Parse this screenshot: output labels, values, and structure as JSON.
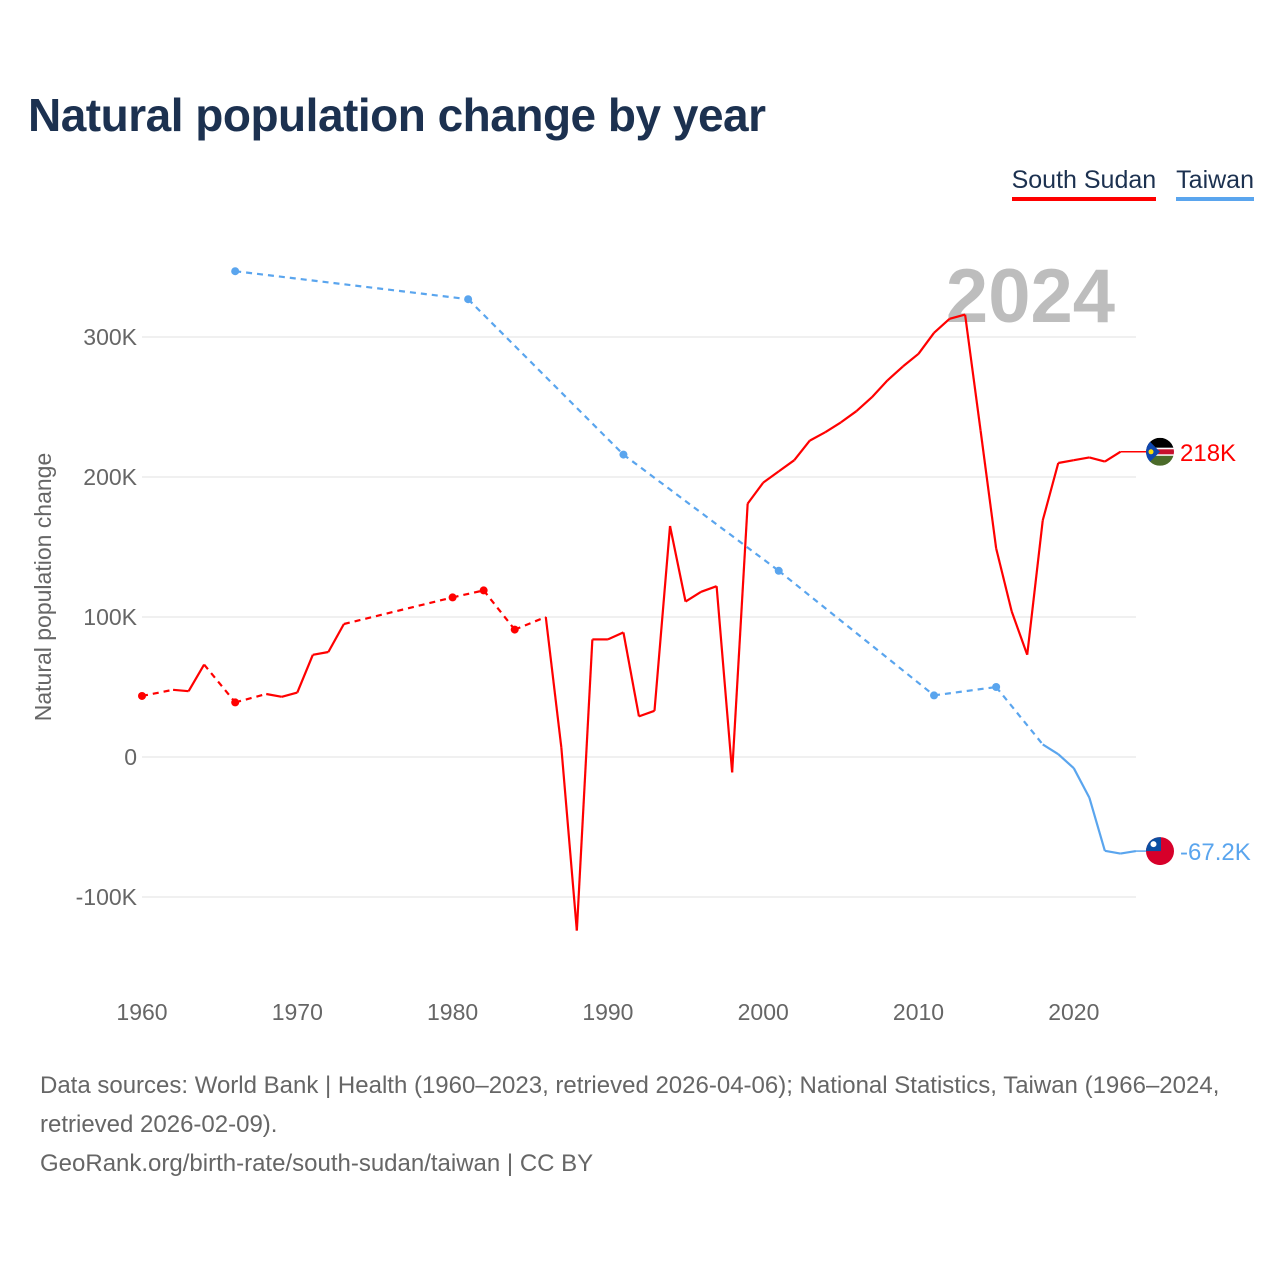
{
  "title": "Natural population change by year",
  "source_lines": [
    "Data sources: World Bank | Health (1960–2023, retrieved 2026-04-06); National Statistics, Taiwan (1966–2024, retrieved 2026-02-09).",
    "GeoRank.org/birth-rate/south-sudan/taiwan | CC BY"
  ],
  "chart_data": {
    "type": "line",
    "title": "Natural population change by year",
    "xlabel": "",
    "ylabel": "Natural population change",
    "watermark_year": "2024",
    "xlim": [
      1960,
      2024
    ],
    "ylim": [
      -150000,
      350000
    ],
    "xticks": [
      1960,
      1970,
      1980,
      1990,
      2000,
      2010,
      2020
    ],
    "xtick_labels": [
      "1960",
      "1970",
      "1980",
      "1990",
      "2000",
      "2010",
      "2020"
    ],
    "yticks": [
      -100000,
      0,
      100000,
      200000,
      300000
    ],
    "ytick_labels": [
      "-100K",
      "0",
      "100K",
      "200K",
      "300K"
    ],
    "grid": true,
    "legend_position": "top-right",
    "series": [
      {
        "name": "South Sudan",
        "color": "#ff0000",
        "end_label": "218K",
        "x": [
          1960,
          1962,
          1963,
          1964,
          1966,
          1968,
          1969,
          1970,
          1971,
          1972,
          1973,
          1980,
          1982,
          1984,
          1986,
          1987,
          1988,
          1989,
          1990,
          1991,
          1992,
          1993,
          1994,
          1995,
          1996,
          1997,
          1998,
          1999,
          2000,
          2001,
          2002,
          2003,
          2004,
          2005,
          2006,
          2007,
          2008,
          2009,
          2010,
          2011,
          2012,
          2013,
          2014,
          2015,
          2016,
          2017,
          2018,
          2019,
          2020,
          2021,
          2022,
          2023
        ],
        "y": [
          43600,
          48000,
          47000,
          66000,
          39000,
          45000,
          43000,
          46000,
          73000,
          75000,
          95000,
          114000,
          119000,
          91000,
          100000,
          7000,
          -124000,
          84000,
          84000,
          89000,
          29000,
          33000,
          165000,
          111000,
          118000,
          122000,
          -11000,
          181000,
          196000,
          204000,
          212000,
          226000,
          232000,
          239000,
          247000,
          257000,
          269000,
          279000,
          288000,
          303000,
          313000,
          316000,
          233000,
          149000,
          104000,
          73000,
          169000,
          210000,
          212000,
          214000,
          211000,
          218000
        ]
      },
      {
        "name": "Taiwan",
        "color": "#5aa5ee",
        "end_label": "-67.2K",
        "x": [
          1966,
          1981,
          1991,
          2001,
          2011,
          2015,
          2018,
          2019,
          2020,
          2021,
          2022,
          2023,
          2024
        ],
        "y": [
          347000,
          327000,
          216000,
          133000,
          44000,
          50000,
          9000,
          2000,
          -8000,
          -29000,
          -67000,
          -69000,
          -67200
        ]
      }
    ]
  }
}
